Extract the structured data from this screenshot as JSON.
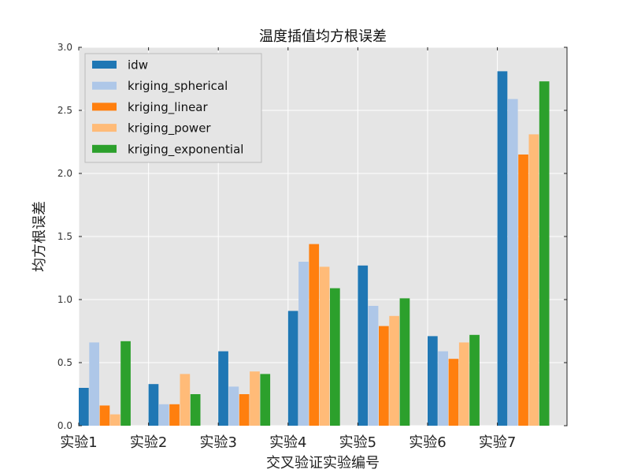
{
  "chart_data": {
    "type": "bar",
    "title": "温度插值均方根误差",
    "xlabel": "交叉验证实验编号",
    "ylabel": "均方根误差",
    "categories": [
      "实验1",
      "实验2",
      "实验3",
      "实验4",
      "实验5",
      "实验6",
      "实验7"
    ],
    "ylim": [
      0,
      3.0
    ],
    "yticks": [
      "0.0",
      "0.5",
      "1.0",
      "1.5",
      "2.0",
      "2.5",
      "3.0"
    ],
    "grid": true,
    "legend_position": "top-left",
    "series": [
      {
        "name": "idw",
        "color": "#1f77b4",
        "values": [
          0.3,
          0.33,
          0.59,
          0.91,
          1.27,
          0.71,
          2.81
        ]
      },
      {
        "name": "kriging_spherical",
        "color": "#aec7e8",
        "values": [
          0.66,
          0.17,
          0.31,
          1.3,
          0.95,
          0.59,
          2.59
        ]
      },
      {
        "name": "kriging_linear",
        "color": "#ff7f0e",
        "values": [
          0.16,
          0.17,
          0.25,
          1.44,
          0.79,
          0.53,
          2.15
        ]
      },
      {
        "name": "kriging_power",
        "color": "#ffbb78",
        "values": [
          0.09,
          0.41,
          0.43,
          1.26,
          0.87,
          0.66,
          2.31
        ]
      },
      {
        "name": "kriging_exponential",
        "color": "#2ca02c",
        "values": [
          0.67,
          0.25,
          0.41,
          1.09,
          1.01,
          0.72,
          2.73
        ]
      }
    ]
  }
}
